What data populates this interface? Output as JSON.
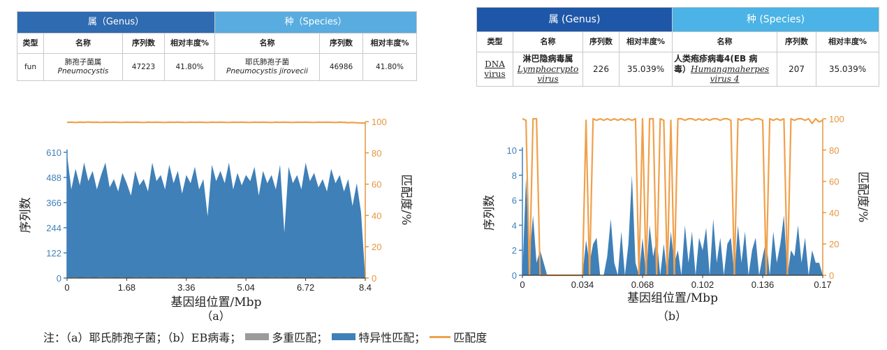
{
  "table_a": {
    "genus_header": "属（Genus）",
    "species_header": "种（Species）",
    "columns": [
      "类型",
      "名称",
      "序列数",
      "相对丰度%",
      "名称",
      "序列数",
      "相对丰度%"
    ],
    "row": {
      "type": "fun",
      "genus_name_cn": "肺孢子菌属",
      "genus_name_latin": "Pneumocystis",
      "genus_reads": "47223",
      "genus_abundance": "41.80%",
      "species_name_cn": "耶氏肺孢子菌",
      "species_name_latin": "Pneumocystis jirovecii",
      "species_reads": "46986",
      "species_abundance": "41.80%"
    }
  },
  "table_b": {
    "genus_header": "属 (Genus)",
    "species_header": "种 (Species)",
    "columns": [
      "类型",
      "名称",
      "序列数",
      "相对丰度%",
      "名称",
      "序列数",
      "相对丰度%"
    ],
    "row": {
      "type_line1": "DNA",
      "type_line2": "virus",
      "genus_name_cn": "淋巴隐病毒属",
      "genus_name_latin_1": "Lymphocrypto",
      "genus_name_latin_2": "virus",
      "genus_reads": "226",
      "genus_abundance": "35.039%",
      "species_name_cn": "人类疱疹病毒4(EB 病",
      "species_name_cn_2": "毒）",
      "species_name_latin_1": "Humangmaherpes",
      "species_name_latin_2": "virus 4",
      "species_reads": "207",
      "species_abundance": "35.039%"
    }
  },
  "colors": {
    "specific": "#3f80b8",
    "multi": "#9b9b9b",
    "match": "#f0a04b",
    "left_axis": "#3f80b8",
    "right_axis": "#e6963c"
  },
  "chart_data": [
    {
      "type": "area",
      "subtitle": "（a）",
      "xlabel": "基因组位置/Mbp",
      "ylabel_left": "序列数",
      "ylabel_right": "匹配度/%",
      "x_ticks": [
        "0",
        "1.68",
        "3.36",
        "5.04",
        "6.72",
        "8.4"
      ],
      "y_left_ticks": [
        "0",
        "122",
        "244",
        "366",
        "488",
        "610"
      ],
      "y_right_ticks": [
        "0",
        "20",
        "40",
        "60",
        "80",
        "100"
      ],
      "xlim": [
        0,
        8.4
      ],
      "ylim_left": [
        0,
        610
      ],
      "ylim_right": [
        0,
        100
      ],
      "x": [
        0,
        0.12,
        0.24,
        0.36,
        0.48,
        0.6,
        0.72,
        0.84,
        0.96,
        1.08,
        1.2,
        1.32,
        1.44,
        1.56,
        1.68,
        1.8,
        1.92,
        2.04,
        2.16,
        2.28,
        2.4,
        2.52,
        2.64,
        2.76,
        2.88,
        3.0,
        3.12,
        3.24,
        3.36,
        3.48,
        3.6,
        3.72,
        3.84,
        3.96,
        4.08,
        4.2,
        4.32,
        4.44,
        4.56,
        4.68,
        4.8,
        4.92,
        5.04,
        5.16,
        5.28,
        5.4,
        5.52,
        5.64,
        5.76,
        5.88,
        6.0,
        6.12,
        6.24,
        6.36,
        6.48,
        6.6,
        6.72,
        6.84,
        6.96,
        7.08,
        7.2,
        7.32,
        7.44,
        7.56,
        7.68,
        7.8,
        7.92,
        8.04,
        8.16,
        8.28,
        8.4
      ],
      "series": [
        {
          "name": "特异性匹配",
          "color_key": "specific",
          "values": [
            600,
            430,
            530,
            450,
            560,
            470,
            520,
            430,
            500,
            560,
            440,
            480,
            420,
            510,
            460,
            400,
            520,
            450,
            480,
            420,
            560,
            470,
            500,
            430,
            550,
            460,
            520,
            410,
            500,
            460,
            540,
            430,
            480,
            300,
            550,
            470,
            520,
            460,
            560,
            430,
            510,
            450,
            500,
            470,
            540,
            400,
            520,
            460,
            500,
            430,
            550,
            220,
            540,
            460,
            500,
            430,
            560,
            470,
            510,
            440,
            480,
            420,
            530,
            460,
            500,
            420,
            480,
            350,
            460,
            320,
            0
          ]
        },
        {
          "name": "多重匹配",
          "color_key": "multi",
          "values": [
            4,
            3,
            4,
            2,
            3,
            4,
            2,
            3,
            5,
            3,
            4,
            2,
            3,
            4,
            3,
            2,
            4,
            3,
            4,
            2,
            3,
            4,
            3,
            2,
            4,
            3,
            5,
            2,
            3,
            4,
            3,
            2,
            4,
            3,
            4,
            2,
            3,
            4,
            3,
            2,
            4,
            3,
            4,
            2,
            3,
            4,
            3,
            2,
            4,
            3,
            4,
            2,
            3,
            4,
            3,
            2,
            4,
            3,
            4,
            2,
            3,
            4,
            3,
            2,
            4,
            3,
            4,
            2,
            3,
            4,
            0
          ]
        },
        {
          "name": "匹配度",
          "color_key": "match",
          "values": [
            99.5,
            99.6,
            99.4,
            99.6,
            99.5,
            99.7,
            99.5,
            99.6,
            99.4,
            99.6,
            99.5,
            99.6,
            99.5,
            99.4,
            99.6,
            99.5,
            99.6,
            99.5,
            99.4,
            99.6,
            99.5,
            99.6,
            99.5,
            99.4,
            99.6,
            99.5,
            99.6,
            99.5,
            99.4,
            99.6,
            99.5,
            99.6,
            99.5,
            99.4,
            99.6,
            99.5,
            99.6,
            99.5,
            99.4,
            99.6,
            99.5,
            99.6,
            99.5,
            99.4,
            99.6,
            99.5,
            99.6,
            99.5,
            99.4,
            99.6,
            99.5,
            99.6,
            99.5,
            99.4,
            99.6,
            99.5,
            99.6,
            99.5,
            99.4,
            99.6,
            99.5,
            99.6,
            99.5,
            99.4,
            99.6,
            99.5,
            99.3,
            99.4,
            99.2,
            99.1,
            99.0
          ]
        }
      ]
    },
    {
      "type": "area",
      "subtitle": "（b）",
      "xlabel": "基因组位置/Mbp",
      "ylabel_left": "序列数",
      "ylabel_right": "匹配度/%",
      "x_ticks": [
        "0",
        "0.034",
        "0.068",
        "0.102",
        "0.136",
        "0.17"
      ],
      "y_left_ticks": [
        "0",
        "2",
        "4",
        "6",
        "8",
        "10"
      ],
      "y_right_ticks": [
        "0",
        "20",
        "40",
        "60",
        "80",
        "100"
      ],
      "xlim": [
        0,
        0.17
      ],
      "ylim_left": [
        0,
        10
      ],
      "ylim_right": [
        0,
        100
      ],
      "x": [
        0,
        0.002,
        0.004,
        0.006,
        0.008,
        0.01,
        0.012,
        0.014,
        0.016,
        0.018,
        0.02,
        0.022,
        0.024,
        0.026,
        0.028,
        0.03,
        0.032,
        0.034,
        0.036,
        0.038,
        0.04,
        0.042,
        0.044,
        0.046,
        0.048,
        0.05,
        0.052,
        0.054,
        0.056,
        0.058,
        0.06,
        0.062,
        0.064,
        0.066,
        0.068,
        0.07,
        0.072,
        0.074,
        0.076,
        0.078,
        0.08,
        0.082,
        0.084,
        0.086,
        0.088,
        0.09,
        0.092,
        0.094,
        0.096,
        0.098,
        0.1,
        0.102,
        0.104,
        0.106,
        0.108,
        0.11,
        0.112,
        0.114,
        0.116,
        0.118,
        0.12,
        0.122,
        0.124,
        0.126,
        0.128,
        0.13,
        0.132,
        0.134,
        0.136,
        0.138,
        0.14,
        0.142,
        0.144,
        0.146,
        0.148,
        0.15,
        0.152,
        0.154,
        0.156,
        0.158,
        0.16,
        0.162,
        0.164,
        0.166,
        0.168,
        0.17
      ],
      "series": [
        {
          "name": "特异性匹配",
          "color_key": "specific",
          "values": [
            0,
            7.8,
            1.5,
            4.8,
            1.0,
            2.0,
            1.0,
            0,
            0,
            0,
            0,
            0,
            0,
            0,
            0,
            0,
            0,
            0,
            2.8,
            1.0,
            2.5,
            3.0,
            0,
            0,
            1.5,
            4.5,
            1.0,
            0,
            3.5,
            0,
            2.5,
            8.0,
            1.0,
            0,
            3.0,
            0,
            4.0,
            1.5,
            3.0,
            0,
            2.5,
            0,
            3.5,
            1.0,
            2.0,
            0,
            4.0,
            1.0,
            3.5,
            0,
            3.0,
            2.0,
            3.8,
            0,
            4.5,
            1.0,
            3.0,
            0,
            2.5,
            3.0,
            0,
            4.0,
            1.0,
            3.5,
            0,
            2.0,
            3.0,
            0,
            1.5,
            2.8,
            0,
            3.5,
            1.0,
            2.5,
            4.8,
            0,
            2.0,
            1.5,
            4.0,
            1.0,
            3.0,
            0,
            2.0,
            1.0,
            1.0,
            0
          ]
        },
        {
          "name": "多重匹配",
          "color_key": "multi",
          "values": [
            0,
            0,
            0,
            0,
            0,
            0,
            0,
            0,
            0,
            0,
            0,
            0,
            0,
            0,
            0,
            0,
            0,
            0,
            0,
            0,
            0,
            0,
            0,
            0,
            0,
            0,
            0,
            0,
            0,
            0,
            0,
            0,
            0,
            0,
            0,
            0,
            0,
            0,
            0,
            0,
            0,
            0,
            0,
            0,
            0,
            0,
            0,
            0,
            0,
            0,
            0,
            0,
            0,
            0,
            0,
            0,
            0,
            0,
            0,
            0,
            0,
            0,
            0,
            0,
            0,
            0,
            0,
            0,
            0,
            0,
            0,
            0,
            0,
            0,
            0,
            0,
            0,
            0,
            0,
            0,
            0,
            0,
            0,
            0,
            0,
            0
          ]
        },
        {
          "name": "匹配度",
          "color_key": "match",
          "values": [
            100,
            99,
            0,
            100,
            100,
            0,
            0,
            0,
            0,
            0,
            0,
            0,
            0,
            0,
            0,
            0,
            0,
            0,
            99,
            0,
            100,
            99,
            100,
            99,
            100,
            99,
            100,
            99,
            100,
            99,
            100,
            99,
            100,
            0,
            100,
            0,
            100,
            100,
            0,
            100,
            99,
            0,
            99,
            0,
            100,
            100,
            99,
            100,
            100,
            99,
            100,
            99,
            100,
            99,
            100,
            100,
            99,
            100,
            100,
            99,
            0,
            100,
            99,
            100,
            100,
            99,
            100,
            100,
            99,
            0,
            100,
            99,
            100,
            99,
            100,
            0,
            100,
            99,
            100,
            100,
            99,
            100,
            97,
            100,
            98,
            99
          ]
        }
      ]
    }
  ],
  "note": {
    "prefix": "注：（a）耶氏肺孢子菌；（b）EB病毒；",
    "multi": "多重匹配；",
    "specific": "特异性匹配；",
    "match": "匹配度"
  }
}
